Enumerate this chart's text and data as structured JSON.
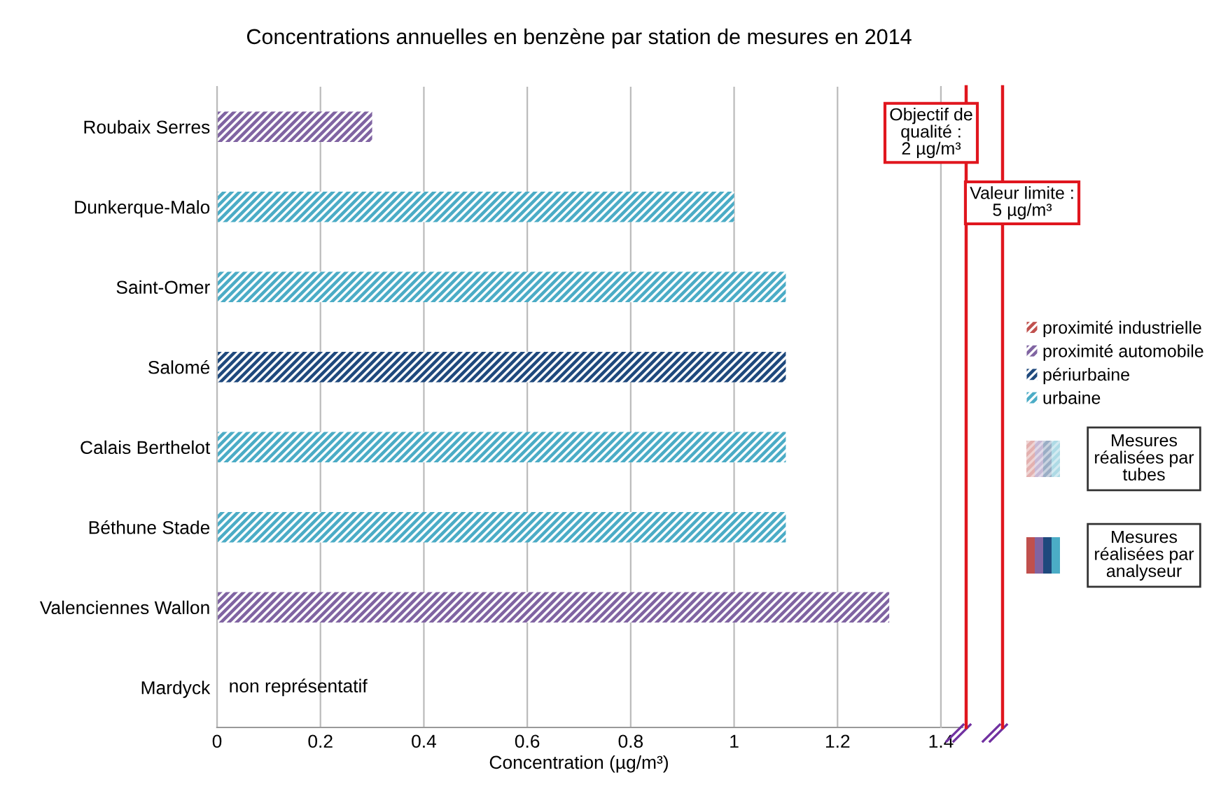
{
  "chart_data": {
    "type": "bar",
    "orientation": "horizontal",
    "title": "Concentrations annuelles en benzène par station de mesures en 2014",
    "xlabel": "Concentration (µg/m³)",
    "categories": [
      "Roubaix Serres",
      "Dunkerque-Malo",
      "Saint-Omer",
      "Salomé",
      "Calais Berthelot",
      "Béthune Stade",
      "Valenciennes Wallon",
      "Mardyck"
    ],
    "series": [
      {
        "name": "proximité industrielle",
        "color": "#c0504d",
        "values": [
          null,
          null,
          null,
          null,
          null,
          null,
          null,
          null
        ]
      },
      {
        "name": "proximité automobile",
        "color": "#8064a2",
        "values": [
          0.3,
          null,
          null,
          null,
          null,
          null,
          1.3,
          null
        ]
      },
      {
        "name": "périurbaine",
        "color": "#1f497d",
        "values": [
          null,
          null,
          null,
          1.1,
          null,
          null,
          null,
          null
        ]
      },
      {
        "name": "urbaine",
        "color": "#4bacc6",
        "values": [
          null,
          1.0,
          1.1,
          null,
          1.1,
          1.1,
          null,
          null
        ]
      }
    ],
    "xlim": [
      0,
      1.4
    ],
    "xticks": [
      0,
      0.2,
      0.4,
      0.6,
      0.8,
      1,
      1.2,
      1.4
    ],
    "grid": "x",
    "legend": "right",
    "annotations": [
      "non représentatif",
      "Objectif de\nqualité :\n2 µg/m³",
      "Valeur limite :\n5 µg/m³",
      "Mesures\nréalisées par\ntubes",
      "Mesures\nréalisées par\nanalyseur"
    ]
  }
}
